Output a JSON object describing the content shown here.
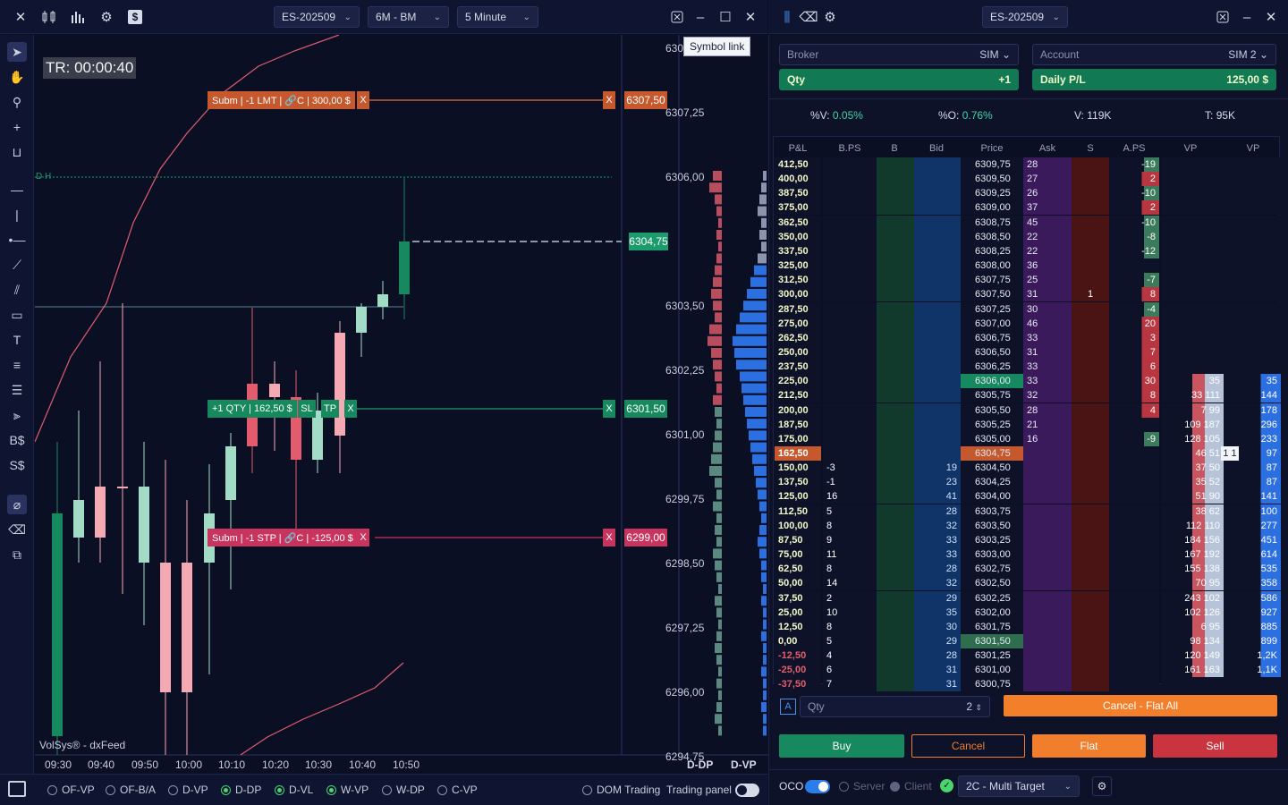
{
  "colors": {
    "bg": "#0b0f24",
    "bull": "#a3dcc6",
    "bull_dark": "#168a5e",
    "bear": "#f4a9b3",
    "bear_dark": "#e35c6d",
    "accent": "#1c9b6d",
    "buy": "#168a5e",
    "flat": "#f07e2c",
    "sell": "#c9343f",
    "cancel_flat": "#f47f2a"
  },
  "toolbar": {
    "icons": [
      "close-icon",
      "bars-icon",
      "chart-icon",
      "gear-icon",
      "dollar-icon"
    ],
    "symbol": "ES-202509",
    "account_tf": "6M - BM",
    "interval": "5 Minute",
    "window_icons": [
      "settings-window-icon",
      "minimize-icon",
      "maximize-icon",
      "close-icon"
    ],
    "tooltip": "Symbol link"
  },
  "chart": {
    "timer": "TR: 00:00:40",
    "dh_label": "D H",
    "price_axis": [
      "6308,50",
      "6307,25",
      "6306,00",
      "6304,75",
      "6303,50",
      "6302,25",
      "6301,00",
      "6299,75",
      "6298,50",
      "6297,25",
      "6296,00",
      "6294,75"
    ],
    "time_axis": [
      "09:30",
      "09:40",
      "09:50",
      "10:00",
      "10:10",
      "10:20",
      "10:30",
      "10:40",
      "10:50"
    ],
    "orders": {
      "lmt_label": "Subm | -1 LMT | 🔗C | 300,00 $",
      "lmt_price": "6307,50",
      "pos_label": "+1 QTY | 162,50 $",
      "sl": "SL",
      "tp": "TP",
      "pos_price": "6301,50",
      "stp_label": "Subm | -1 STP | 🔗C | -125,00 $",
      "stp_price": "6299,00",
      "x": "X"
    },
    "last_price": "6304,75",
    "watermark": "VolSys® - dxFeed",
    "vp_labels": [
      "D-DP",
      "D-VP"
    ]
  },
  "bottom": {
    "radios": [
      {
        "label": "OF-VP",
        "on": false
      },
      {
        "label": "OF-B/A",
        "on": false
      },
      {
        "label": "D-VP",
        "on": false
      },
      {
        "label": "D-DP",
        "on": true
      },
      {
        "label": "D-VL",
        "on": true
      },
      {
        "label": "W-VP",
        "on": true
      },
      {
        "label": "W-DP",
        "on": false
      },
      {
        "label": "C-VP",
        "on": false
      }
    ],
    "dom_trading": "DOM Trading",
    "trading_panel": "Trading panel"
  },
  "panel": {
    "symbol": "ES-202509",
    "broker_label": "Broker",
    "broker_value": "SIM",
    "account_label": "Account",
    "account_value": "SIM 2",
    "qty_label": "Qty",
    "qty_value": "+1",
    "pl_label": "Daily P/L",
    "pl_value": "125,00 $",
    "stats": [
      {
        "k": "%V:",
        "v": "0.05%"
      },
      {
        "k": "%O:",
        "v": "0.76%"
      },
      {
        "k": "V:",
        "v": "119K"
      },
      {
        "k": "T:",
        "v": "95K"
      }
    ],
    "headers": [
      "P&L",
      "B.PS",
      "B",
      "Bid",
      "Price",
      "Ask",
      "S",
      "A.PS",
      "VP",
      "VP"
    ],
    "qty_input_label": "A",
    "qty_placeholder": "Qty",
    "qty_input_value": "2",
    "cancel_flat": "Cancel - Flat All",
    "buy": "Buy",
    "cancel": "Cancel",
    "flat": "Flat",
    "sell": "Sell",
    "oco": "OCO",
    "server": "Server",
    "client": "Client",
    "strategy": "2C - Multi Target"
  },
  "dom": [
    {
      "pl": "412,50",
      "price": "6309,75",
      "ask": "28",
      "aps": "-19"
    },
    {
      "pl": "400,00",
      "price": "6309,50",
      "ask": "27",
      "aps": "2"
    },
    {
      "pl": "387,50",
      "price": "6309,25",
      "ask": "26",
      "aps": "-10"
    },
    {
      "pl": "375,00",
      "price": "6309,00",
      "ask": "37",
      "aps": "2"
    },
    {
      "pl": "362,50",
      "price": "6308,75",
      "ask": "45",
      "aps": "-10"
    },
    {
      "pl": "350,00",
      "price": "6308,50",
      "ask": "22",
      "aps": "-8"
    },
    {
      "pl": "337,50",
      "price": "6308,25",
      "ask": "22",
      "aps": "-12"
    },
    {
      "pl": "325,00",
      "price": "6308,00",
      "ask": "36",
      "aps": ""
    },
    {
      "pl": "312,50",
      "price": "6307,75",
      "ask": "25",
      "aps": "-7"
    },
    {
      "pl": "300,00",
      "price": "6307,50",
      "ask": "31",
      "s": "1",
      "aps": "8"
    },
    {
      "pl": "287,50",
      "price": "6307,25",
      "ask": "30",
      "aps": "-4"
    },
    {
      "pl": "275,00",
      "price": "6307,00",
      "ask": "46",
      "aps": "20"
    },
    {
      "pl": "262,50",
      "price": "6306,75",
      "ask": "33",
      "aps": "3"
    },
    {
      "pl": "250,00",
      "price": "6306,50",
      "ask": "31",
      "aps": "7"
    },
    {
      "pl": "237,50",
      "price": "6306,25",
      "ask": "33",
      "aps": "6"
    },
    {
      "pl": "225,00",
      "price": "6306,00",
      "ask": "33",
      "aps": "30",
      "vp1": "35",
      "vp2": "35"
    },
    {
      "pl": "212,50",
      "price": "6305,75",
      "ask": "32",
      "aps": "8",
      "vp1": "33 111",
      "vp2": "144"
    },
    {
      "pl": "200,00",
      "price": "6305,50",
      "ask": "28",
      "aps": "4",
      "vp1": "7 99",
      "vp2": "178"
    },
    {
      "pl": "187,50",
      "price": "6305,25",
      "ask": "21",
      "aps": "",
      "vp1": "109 187",
      "vp2": "296"
    },
    {
      "pl": "175,00",
      "price": "6305,00",
      "ask": "16",
      "aps": "-9",
      "vp1": "128 105",
      "vp2": "233"
    },
    {
      "pl": "162,50",
      "price": "6304,75",
      "vp1": "46 51",
      "vp2": "97",
      "tag": "1 1"
    },
    {
      "pl": "150,00",
      "price": "6304,50",
      "bps": "-3",
      "bid": "19",
      "vp1": "37 50",
      "vp2": "87"
    },
    {
      "pl": "137,50",
      "price": "6304,25",
      "bps": "-1",
      "bid": "23",
      "vp1": "35 52",
      "vp2": "87"
    },
    {
      "pl": "125,00",
      "price": "6304,00",
      "bps": "16",
      "bid": "41",
      "vp1": "51 90",
      "vp2": "141"
    },
    {
      "pl": "112,50",
      "price": "6303,75",
      "bps": "5",
      "bid": "28",
      "vp1": "38 62",
      "vp2": "100"
    },
    {
      "pl": "100,00",
      "price": "6303,50",
      "bps": "8",
      "bid": "32",
      "vp1": "112 110",
      "vp2": "277"
    },
    {
      "pl": "87,50",
      "price": "6303,25",
      "bps": "9",
      "bid": "33",
      "vp1": "184 156",
      "vp2": "451"
    },
    {
      "pl": "75,00",
      "price": "6303,00",
      "bps": "11",
      "bid": "33",
      "vp1": "167 192",
      "vp2": "614"
    },
    {
      "pl": "62,50",
      "price": "6302,75",
      "bps": "8",
      "bid": "28",
      "vp1": "155 138",
      "vp2": "535"
    },
    {
      "pl": "50,00",
      "price": "6302,50",
      "bps": "14",
      "bid": "32",
      "vp1": "70 95",
      "vp2": "358"
    },
    {
      "pl": "37,50",
      "price": "6302,25",
      "bps": "2",
      "bid": "29",
      "vp1": "243 102",
      "vp2": "586"
    },
    {
      "pl": "25,00",
      "price": "6302,00",
      "bps": "10",
      "bid": "35",
      "vp1": "102 126",
      "vp2": "927"
    },
    {
      "pl": "12,50",
      "price": "6301,75",
      "bps": "8",
      "bid": "30",
      "vp1": "6 95",
      "vp2": "885"
    },
    {
      "pl": "0,00",
      "price": "6301,50",
      "bps": "5",
      "bid": "29",
      "vp1": "98 134",
      "vp2": "899"
    },
    {
      "pl": "-12,50",
      "price": "6301,25",
      "bps": "4",
      "bid": "28",
      "vp1": "120 149",
      "vp2": "1,2K"
    },
    {
      "pl": "-25,00",
      "price": "6301,00",
      "bps": "6",
      "bid": "31",
      "vp1": "161 163",
      "vp2": "1,1K"
    },
    {
      "pl": "-37,50",
      "price": "6300,75",
      "bps": "7",
      "bid": "31",
      "vp1": "",
      "vp2": ""
    }
  ]
}
